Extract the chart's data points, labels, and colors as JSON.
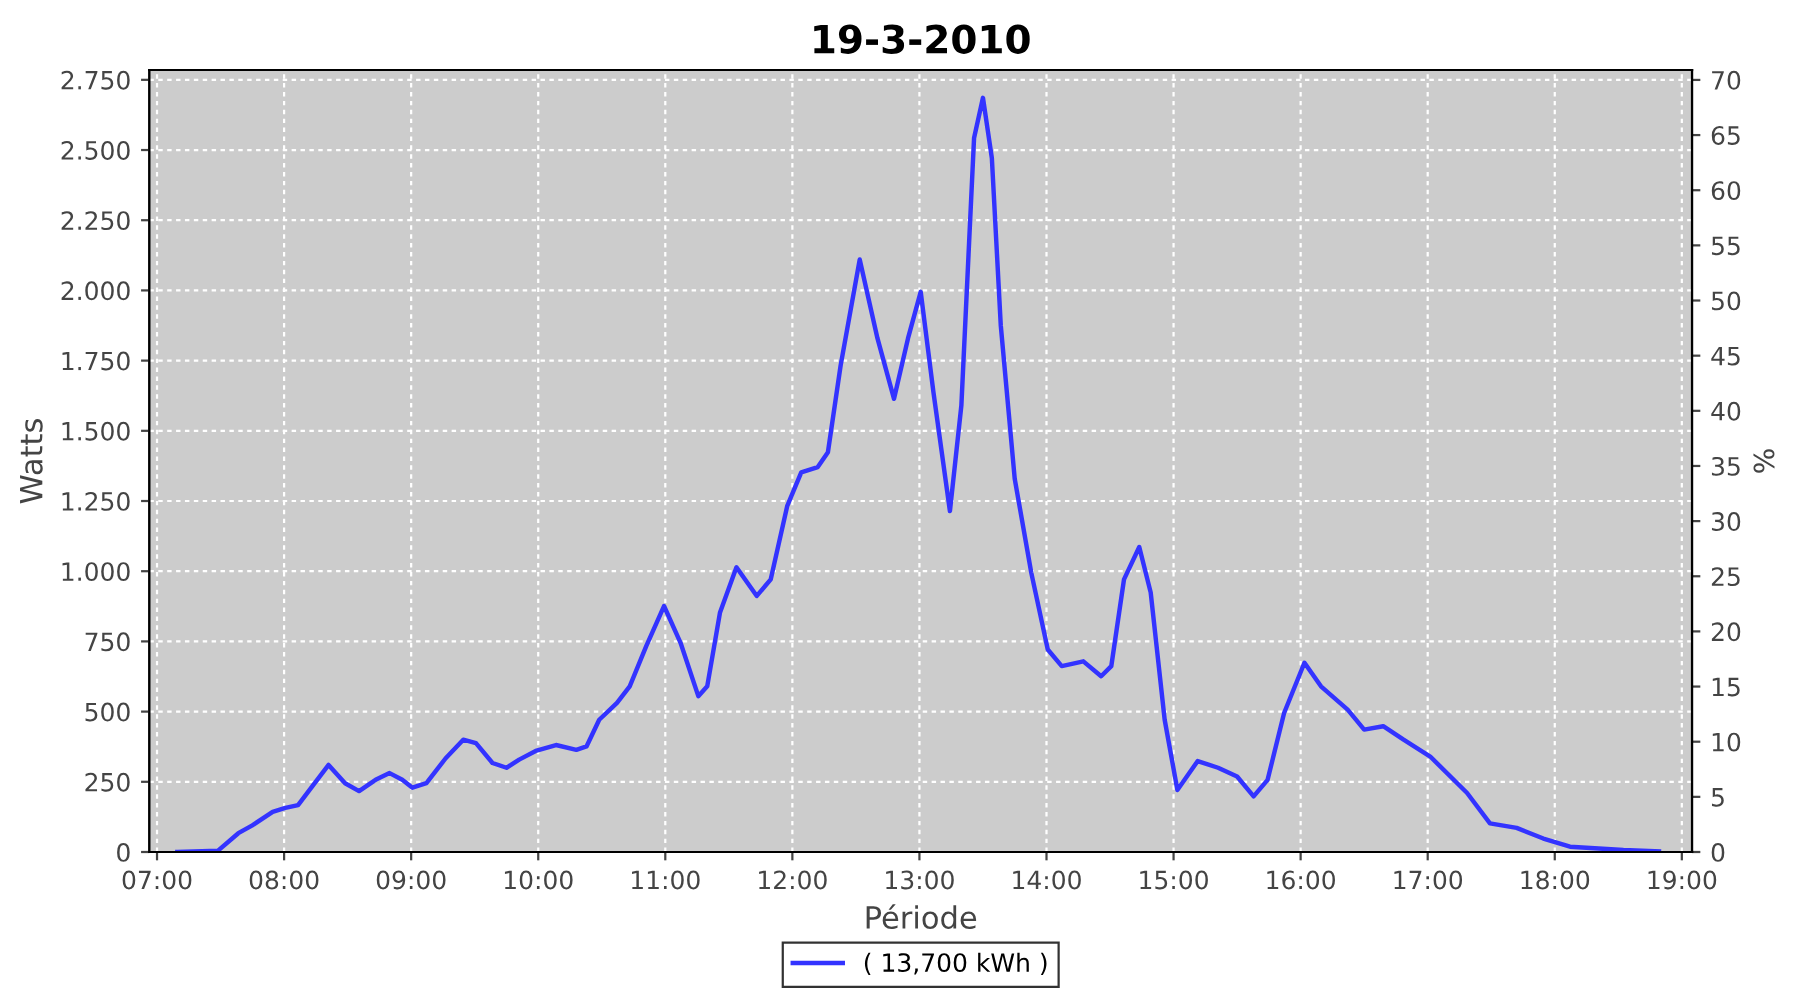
{
  "chart_data": {
    "type": "line",
    "title": "19-3-2010",
    "xlabel": "Période",
    "ylabel": "Watts",
    "y2label": "%",
    "x": [
      7.16,
      7.48,
      7.64,
      7.75,
      7.91,
      8.01,
      8.11,
      8.22,
      8.35,
      8.48,
      8.59,
      8.72,
      8.83,
      8.93,
      9.01,
      9.12,
      9.27,
      9.41,
      9.51,
      9.64,
      9.75,
      9.85,
      9.98,
      10.14,
      10.3,
      10.38,
      10.48,
      10.62,
      10.72,
      10.85,
      10.99,
      11.12,
      11.26,
      11.33,
      11.43,
      11.56,
      11.72,
      11.83,
      11.96,
      12.07,
      12.2,
      12.28,
      12.38,
      12.53,
      12.67,
      12.8,
      12.91,
      13.01,
      13.11,
      13.24,
      13.33,
      13.43,
      13.5,
      13.57,
      13.64,
      13.75,
      13.88,
      14.01,
      14.12,
      14.29,
      14.43,
      14.51,
      14.61,
      14.73,
      14.82,
      14.93,
      15.03,
      15.19,
      15.35,
      15.5,
      15.63,
      15.74,
      15.87,
      16.03,
      16.16,
      16.37,
      16.5,
      16.65,
      16.81,
      17.02,
      17.31,
      17.49,
      17.7,
      17.91,
      18.12,
      18.54,
      18.82
    ],
    "series": [
      {
        "name": "( 13,700 kWh )",
        "color": "#3333ff",
        "values": [
          0,
          5,
          67,
          95,
          143,
          157,
          167,
          233,
          310,
          245,
          217,
          257,
          281,
          257,
          229,
          245,
          333,
          400,
          388,
          317,
          300,
          329,
          360,
          381,
          364,
          376,
          471,
          531,
          590,
          733,
          876,
          745,
          555,
          590,
          852,
          1014,
          912,
          971,
          1233,
          1352,
          1371,
          1424,
          1733,
          2110,
          1829,
          1614,
          1829,
          1995,
          1638,
          1214,
          1590,
          2543,
          2686,
          2471,
          1876,
          1329,
          995,
          721,
          662,
          679,
          626,
          662,
          971,
          1086,
          924,
          471,
          221,
          324,
          300,
          269,
          198,
          257,
          495,
          674,
          590,
          507,
          436,
          448,
          400,
          340,
          210,
          102,
          86,
          48,
          19,
          7,
          2
        ]
      }
    ],
    "xlim": [
      6.94,
      19.08
    ],
    "xticks": [
      {
        "value": 7,
        "label": "07:00"
      },
      {
        "value": 8,
        "label": "08:00"
      },
      {
        "value": 9,
        "label": "09:00"
      },
      {
        "value": 10,
        "label": "10:00"
      },
      {
        "value": 11,
        "label": "11:00"
      },
      {
        "value": 12,
        "label": "12:00"
      },
      {
        "value": 13,
        "label": "13:00"
      },
      {
        "value": 14,
        "label": "14:00"
      },
      {
        "value": 15,
        "label": "15:00"
      },
      {
        "value": 16,
        "label": "16:00"
      },
      {
        "value": 17,
        "label": "17:00"
      },
      {
        "value": 18,
        "label": "18:00"
      },
      {
        "value": 19,
        "label": "19:00"
      }
    ],
    "ylim": [
      0,
      2785
    ],
    "yticks": [
      0,
      250,
      500,
      750,
      {
        "value": 1000,
        "label": "1.000"
      },
      {
        "value": 1250,
        "label": "1.250"
      },
      {
        "value": 1500,
        "label": "1.500"
      },
      {
        "value": 1750,
        "label": "1.750"
      },
      {
        "value": 2000,
        "label": "2.000"
      },
      {
        "value": 2250,
        "label": "2.250"
      },
      {
        "value": 2500,
        "label": "2.500"
      },
      {
        "value": 2750,
        "label": "2.750"
      }
    ],
    "y2lim": [
      0,
      70.9
    ],
    "y2ticks": [
      0,
      5,
      10,
      15,
      20,
      25,
      30,
      35,
      40,
      45,
      50,
      55,
      60,
      65,
      70
    ],
    "grid": true,
    "legend": "bottom",
    "marker": "none",
    "line_style": "solid"
  }
}
